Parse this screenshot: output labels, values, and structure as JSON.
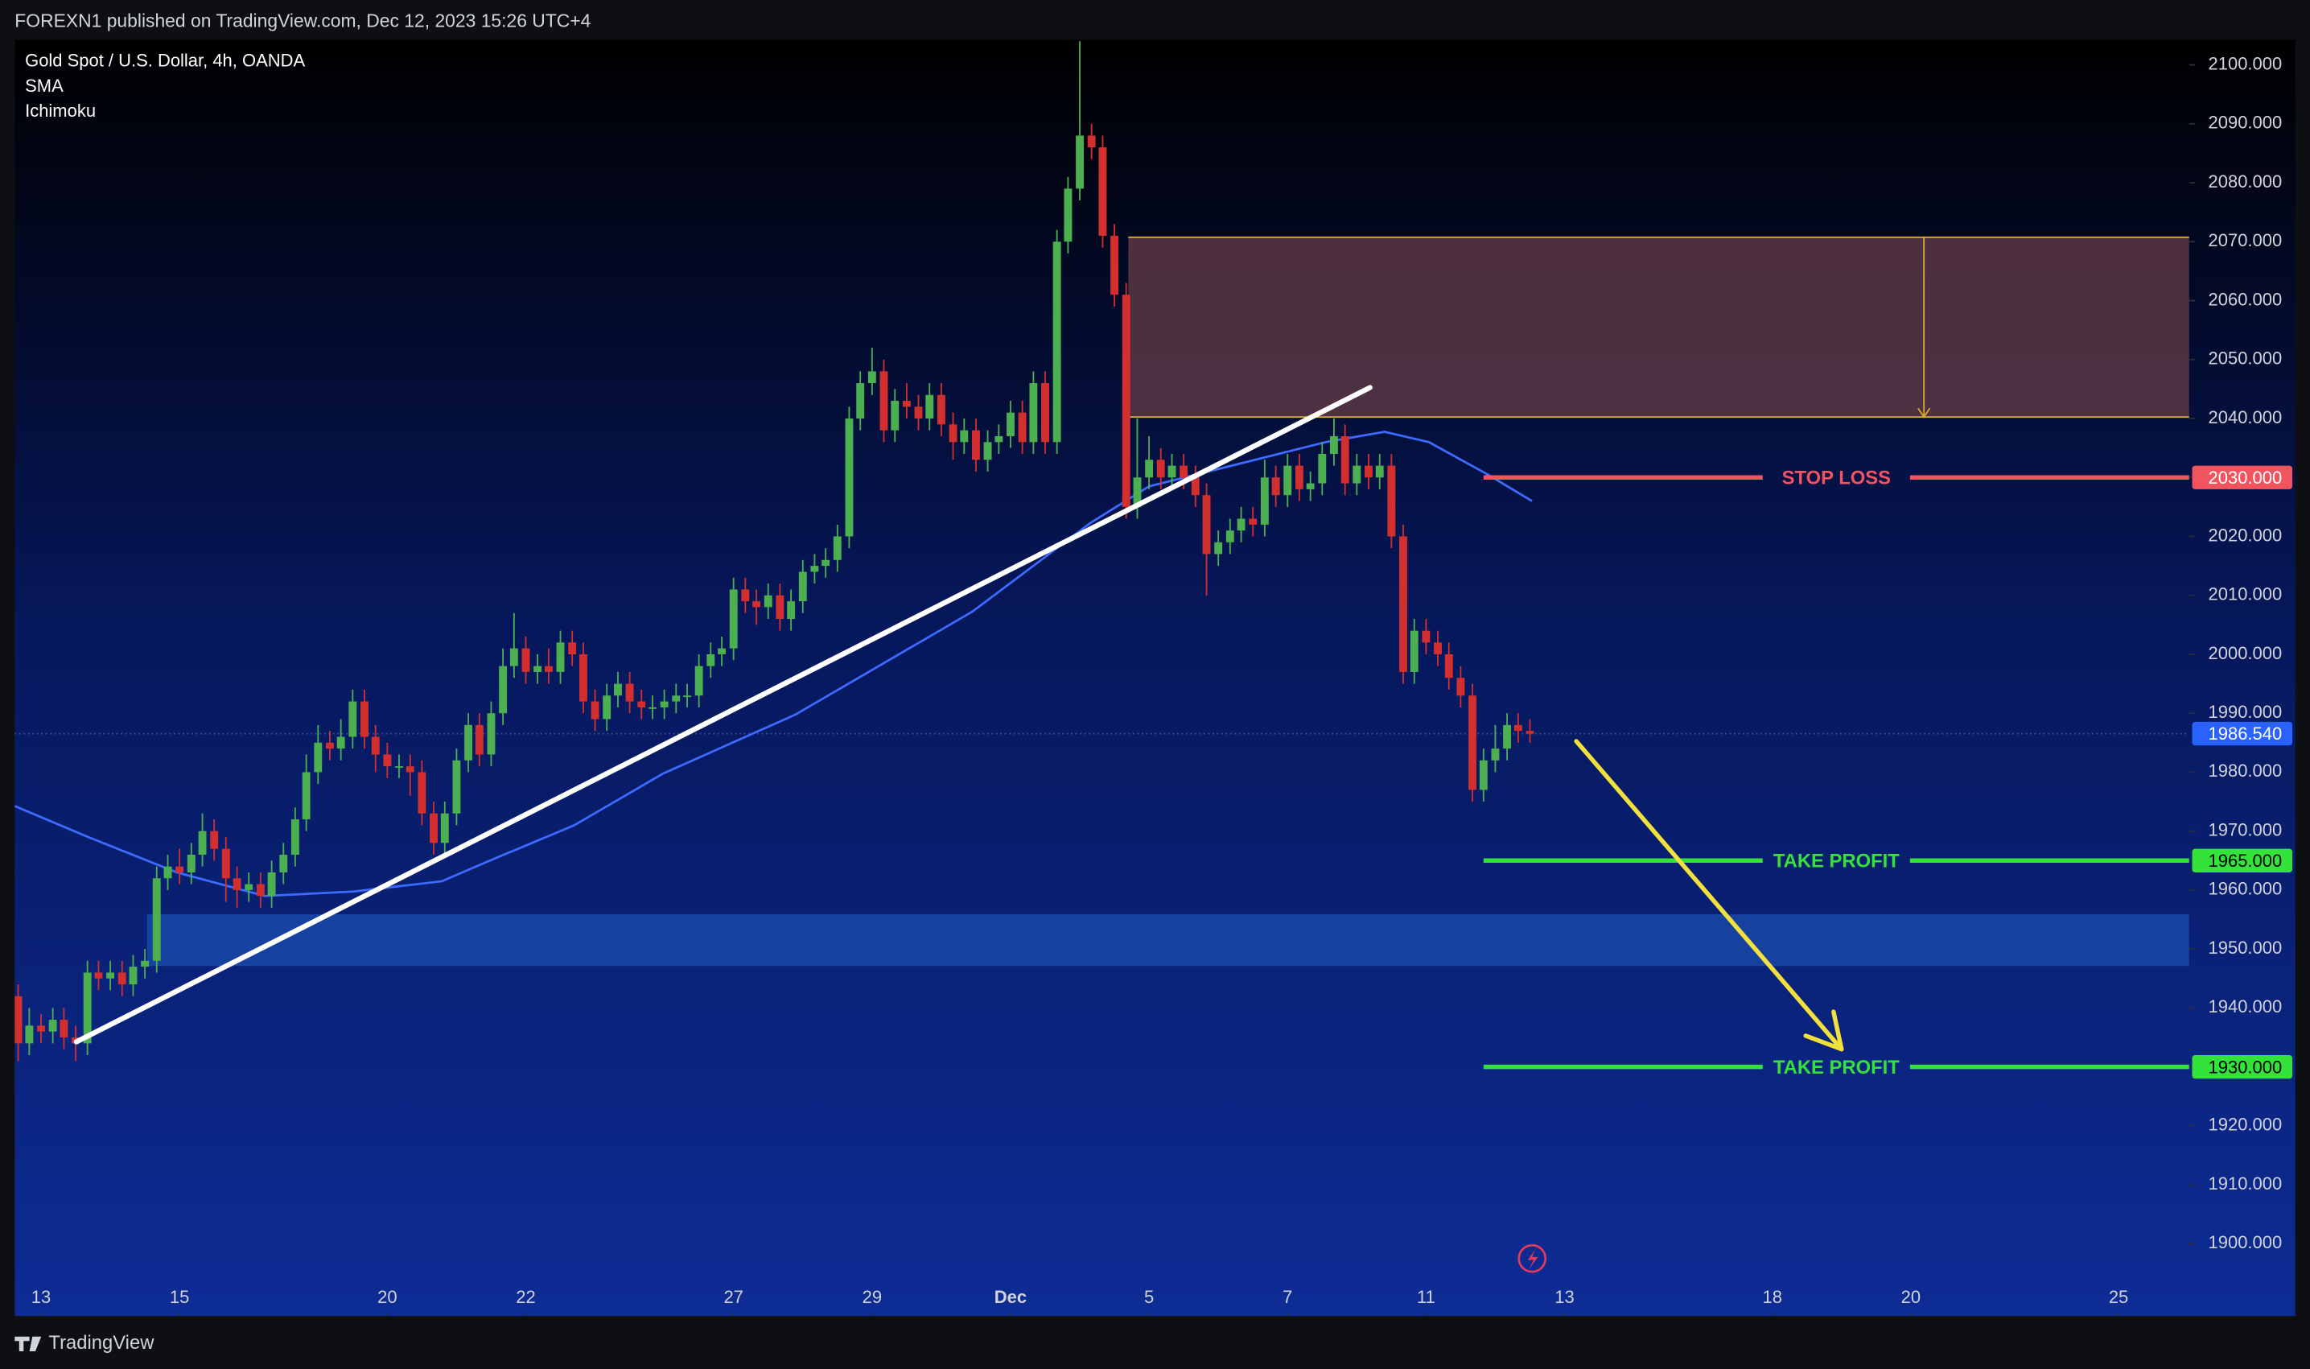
{
  "header": {
    "publisher": "FOREXN1 published on TradingView.com, Dec 12, 2023 15:26 UTC+4"
  },
  "footer": {
    "brand": "TradingView"
  },
  "chart_data": {
    "type": "candlestick",
    "title": "Gold Spot / U.S. Dollar, 4h, OANDA",
    "indicators": [
      "SMA",
      "Ichimoku"
    ],
    "up_color": "#4caf50",
    "down_color": "#d32f2f",
    "xlim": [
      -0.38,
      31.02
    ],
    "ylim": [
      1887.75,
      2104.25
    ],
    "xticks": [
      {
        "value": 0,
        "label": "13"
      },
      {
        "value": 2,
        "label": "15"
      },
      {
        "value": 5,
        "label": "20"
      },
      {
        "value": 7,
        "label": "22"
      },
      {
        "value": 10,
        "label": "27"
      },
      {
        "value": 12,
        "label": "29"
      },
      {
        "value": 14,
        "label": "Dec"
      },
      {
        "value": 16,
        "label": "5"
      },
      {
        "value": 18,
        "label": "7"
      },
      {
        "value": 20,
        "label": "11"
      },
      {
        "value": 22,
        "label": "13"
      },
      {
        "value": 25,
        "label": "18"
      },
      {
        "value": 27,
        "label": "20"
      },
      {
        "value": 30,
        "label": "25"
      }
    ],
    "yticks": [
      {
        "value": 1900,
        "label": "1900.000"
      },
      {
        "value": 1910,
        "label": "1910.000"
      },
      {
        "value": 1920,
        "label": "1920.000"
      },
      {
        "value": 1930,
        "label": "1930.000"
      },
      {
        "value": 1940,
        "label": "1940.000"
      },
      {
        "value": 1950,
        "label": "1950.000"
      },
      {
        "value": 1960,
        "label": "1960.000"
      },
      {
        "value": 1970,
        "label": "1970.000"
      },
      {
        "value": 1980,
        "label": "1980.000"
      },
      {
        "value": 1990,
        "label": "1990.000"
      },
      {
        "value": 2000,
        "label": "2000.000"
      },
      {
        "value": 2010,
        "label": "2010.000"
      },
      {
        "value": 2020,
        "label": "2020.000"
      },
      {
        "value": 2030,
        "label": "2030.000"
      },
      {
        "value": 2040,
        "label": "2040.000"
      },
      {
        "value": 2050,
        "label": "2050.000"
      },
      {
        "value": 2060,
        "label": "2060.000"
      },
      {
        "value": 2070,
        "label": "2070.000"
      },
      {
        "value": 2080,
        "label": "2080.000"
      },
      {
        "value": 2090,
        "label": "2090.000"
      },
      {
        "value": 2100,
        "label": "2100.000"
      }
    ],
    "x": [
      -0.33,
      -0.17,
      0,
      0.17,
      0.33,
      0.5,
      0.67,
      0.83,
      1,
      1.17,
      1.33,
      1.5,
      1.67,
      1.83,
      2,
      2.17,
      2.33,
      2.5,
      2.67,
      2.83,
      3,
      3.17,
      3.33,
      3.5,
      3.67,
      3.83,
      4,
      4.17,
      4.33,
      4.5,
      4.67,
      4.83,
      5,
      5.17,
      5.33,
      5.5,
      5.67,
      5.83,
      6,
      6.17,
      6.33,
      6.5,
      6.67,
      6.83,
      7,
      7.17,
      7.33,
      7.5,
      7.67,
      7.83,
      8,
      8.17,
      8.33,
      8.5,
      8.67,
      8.83,
      9,
      9.17,
      9.33,
      9.5,
      9.67,
      9.83,
      10,
      10.17,
      10.33,
      10.5,
      10.67,
      10.83,
      11,
      11.17,
      11.33,
      11.5,
      11.67,
      11.83,
      12,
      12.17,
      12.33,
      12.5,
      12.67,
      12.83,
      13,
      13.17,
      13.33,
      13.5,
      13.67,
      13.83,
      14,
      14.17,
      14.33,
      14.5,
      14.67,
      14.83,
      15,
      15.17,
      15.33,
      15.5,
      15.67,
      15.83,
      16,
      16.17,
      16.33,
      16.5,
      16.67,
      16.83,
      17,
      17.17,
      17.33,
      17.5,
      17.67,
      17.83,
      18,
      18.17,
      18.33,
      18.5,
      18.67,
      18.83,
      19,
      19.17,
      19.33,
      19.5,
      19.67,
      19.83,
      20,
      20.17,
      20.33,
      20.5,
      20.67,
      20.83,
      21,
      21.17,
      21.33,
      21.5
    ],
    "open": [
      1942,
      1934,
      1937,
      1936,
      1938,
      1935,
      1934,
      1946,
      1945,
      1946,
      1944,
      1947,
      1948,
      1962,
      1964,
      1963,
      1966,
      1970,
      1967,
      1962,
      1960,
      1961,
      1959,
      1963,
      1966,
      1972,
      1980,
      1985,
      1984,
      1986,
      1992,
      1986,
      1983,
      1981,
      1981,
      1980,
      1973,
      1968,
      1973,
      1982,
      1988,
      1983,
      1990,
      1998,
      2001,
      1997,
      1998,
      1997,
      2002,
      2000,
      1992,
      1989,
      1993,
      1995,
      1992,
      1991,
      1991,
      1992,
      1993,
      1993,
      1998,
      2000,
      2001,
      2011,
      2009,
      2008,
      2010,
      2006,
      2009,
      2014,
      2015,
      2016,
      2020,
      2040,
      2046,
      2048,
      2038,
      2043,
      2042,
      2040,
      2044,
      2039,
      2036,
      2038,
      2033,
      2036,
      2037,
      2041,
      2036,
      2046,
      2036,
      2070,
      2079,
      2088,
      2086,
      2071,
      2061,
      2025,
      2030,
      2033,
      2030,
      2032,
      2030,
      2027,
      2017,
      2019,
      2021,
      2023,
      2022,
      2030,
      2027,
      2032,
      2028,
      2029,
      2034,
      2037,
      2029,
      2032,
      2030,
      2032,
      2020,
      1997,
      2004,
      2002,
      2000,
      1996,
      1993,
      1977,
      1982,
      1984,
      1988,
      1987
    ],
    "high": [
      1944,
      1940,
      1939,
      1940,
      1940,
      1937,
      1948,
      1948,
      1948,
      1948,
      1949,
      1950,
      1964,
      1966,
      1967,
      1968,
      1973,
      1972,
      1969,
      1964,
      1963,
      1963,
      1965,
      1968,
      1974,
      1983,
      1988,
      1987,
      1989,
      1994,
      1994,
      1988,
      1985,
      1983,
      1983,
      1982,
      1975,
      1975,
      1984,
      1990,
      1990,
      1992,
      2001,
      2007,
      2003,
      2000,
      2001,
      2004,
      2004,
      2002,
      1994,
      1995,
      1997,
      1997,
      1994,
      1993,
      1994,
      1995,
      1995,
      2000,
      2002,
      2003,
      2013,
      2013,
      2011,
      2012,
      2012,
      2011,
      2016,
      2017,
      2018,
      2022,
      2042,
      2048,
      2052,
      2050,
      2045,
      2046,
      2044,
      2046,
      2046,
      2041,
      2040,
      2040,
      2038,
      2039,
      2043,
      2043,
      2048,
      2048,
      2072,
      2081,
      2104,
      2090,
      2088,
      2073,
      2063,
      2040,
      2037,
      2035,
      2034,
      2034,
      2032,
      2029,
      2021,
      2023,
      2025,
      2025,
      2033,
      2032,
      2034,
      2034,
      2031,
      2036,
      2040,
      2039,
      2034,
      2034,
      2034,
      2034,
      2022,
      2006,
      2006,
      2004,
      2002,
      1998,
      1995,
      1984,
      1988,
      1990,
      1990,
      1989
    ],
    "low": [
      1931,
      1932,
      1934,
      1934,
      1933,
      1931,
      1932,
      1943,
      1943,
      1942,
      1942,
      1945,
      1946,
      1960,
      1961,
      1961,
      1964,
      1965,
      1958,
      1957,
      1958,
      1957,
      1957,
      1961,
      1964,
      1970,
      1978,
      1982,
      1982,
      1984,
      1984,
      1980,
      1979,
      1979,
      1976,
      1971,
      1966,
      1966,
      1971,
      1980,
      1981,
      1981,
      1988,
      1996,
      1995,
      1995,
      1995,
      1995,
      1998,
      1990,
      1987,
      1987,
      1991,
      1990,
      1989,
      1989,
      1989,
      1990,
      1991,
      1991,
      1996,
      1998,
      1999,
      2007,
      2005,
      2006,
      2004,
      2004,
      2007,
      2012,
      2013,
      2014,
      2018,
      2038,
      2044,
      2036,
      2036,
      2040,
      2038,
      2038,
      2037,
      2033,
      2034,
      2031,
      2031,
      2034,
      2035,
      2034,
      2034,
      2034,
      2034,
      2068,
      2077,
      2084,
      2069,
      2059,
      2023,
      2023,
      2028,
      2028,
      2028,
      2028,
      2025,
      2010,
      2015,
      2017,
      2019,
      2020,
      2020,
      2025,
      2025,
      2026,
      2026,
      2027,
      2032,
      2027,
      2027,
      2028,
      2028,
      2018,
      1995,
      1995,
      2000,
      1998,
      1994,
      1991,
      1975,
      1975,
      1980,
      1982,
      1985,
      1985
    ],
    "close": [
      1934,
      1937,
      1936,
      1938,
      1935,
      1934,
      1946,
      1945,
      1946,
      1944,
      1947,
      1948,
      1962,
      1964,
      1963,
      1966,
      1970,
      1967,
      1962,
      1960,
      1961,
      1959,
      1963,
      1966,
      1972,
      1980,
      1985,
      1984,
      1986,
      1992,
      1986,
      1983,
      1981,
      1981,
      1980,
      1973,
      1968,
      1973,
      1982,
      1988,
      1983,
      1990,
      1998,
      2001,
      1997,
      1998,
      1997,
      2002,
      2000,
      1992,
      1989,
      1993,
      1995,
      1992,
      1991,
      1991,
      1992,
      1993,
      1993,
      1998,
      2000,
      2001,
      2011,
      2009,
      2008,
      2010,
      2006,
      2009,
      2014,
      2015,
      2016,
      2020,
      2040,
      2046,
      2048,
      2038,
      2043,
      2042,
      2040,
      2044,
      2039,
      2036,
      2038,
      2033,
      2036,
      2037,
      2041,
      2036,
      2046,
      2036,
      2070,
      2079,
      2088,
      2086,
      2071,
      2061,
      2025,
      2030,
      2033,
      2030,
      2032,
      2030,
      2027,
      2017,
      2019,
      2021,
      2023,
      2022,
      2030,
      2027,
      2032,
      2028,
      2029,
      2034,
      2037,
      2029,
      2032,
      2030,
      2032,
      2020,
      1997,
      2004,
      2002,
      2000,
      1996,
      1993,
      1977,
      1982,
      1984,
      1988,
      1987,
      1986.54
    ],
    "sma": {
      "color": "#3d6bff",
      "x": [
        -0.38,
        0.68,
        1.96,
        3.23,
        4.51,
        5.79,
        6.43,
        7.7,
        8.98,
        10.89,
        12.17,
        13.45,
        14.3,
        15.15,
        16,
        17.28,
        18.55,
        19.4,
        20.04,
        20.89,
        21.53
      ],
      "values": [
        1974.25,
        1969,
        1963,
        1959,
        1959.75,
        1961.5,
        1964.75,
        1971,
        1979.75,
        1989.75,
        1998.5,
        2007.25,
        2014.75,
        2022.25,
        2028.5,
        2032.25,
        2036,
        2037.75,
        2036,
        2030.5,
        2026
      ]
    },
    "last_price": {
      "value": 1986.54,
      "label": "1986.540",
      "color": "#2962ff"
    },
    "zones": [
      {
        "from": 15.7,
        "low": 2040.25,
        "high": 2070.75,
        "color": "#553442",
        "border": "#d8a936"
      },
      {
        "from": 1.53,
        "low": 1947.25,
        "high": 1955.75,
        "color": "#1845a3",
        "border": "#1845a3"
      }
    ],
    "levels": [
      {
        "text": "STOP LOSS",
        "price": 2030,
        "price_label": "2030.000",
        "start": 20.83,
        "color": "#f2545f"
      },
      {
        "text": "TAKE PROFIT",
        "price": 1965,
        "price_label": "1965.000",
        "start": 20.83,
        "color": "#33e33a"
      },
      {
        "text": "TAKE PROFIT",
        "price": 1930,
        "price_label": "1930.000",
        "start": 20.83,
        "color": "#33e33a"
      }
    ],
    "trendline": {
      "color": "#ffffff",
      "x": [
        0.51,
        19.19
      ],
      "y": [
        1934.25,
        2045.25
      ]
    },
    "arrow": {
      "color": "#f2e03c",
      "x": [
        22.17,
        26.0
      ],
      "y": [
        1985.25,
        1933
      ]
    }
  }
}
